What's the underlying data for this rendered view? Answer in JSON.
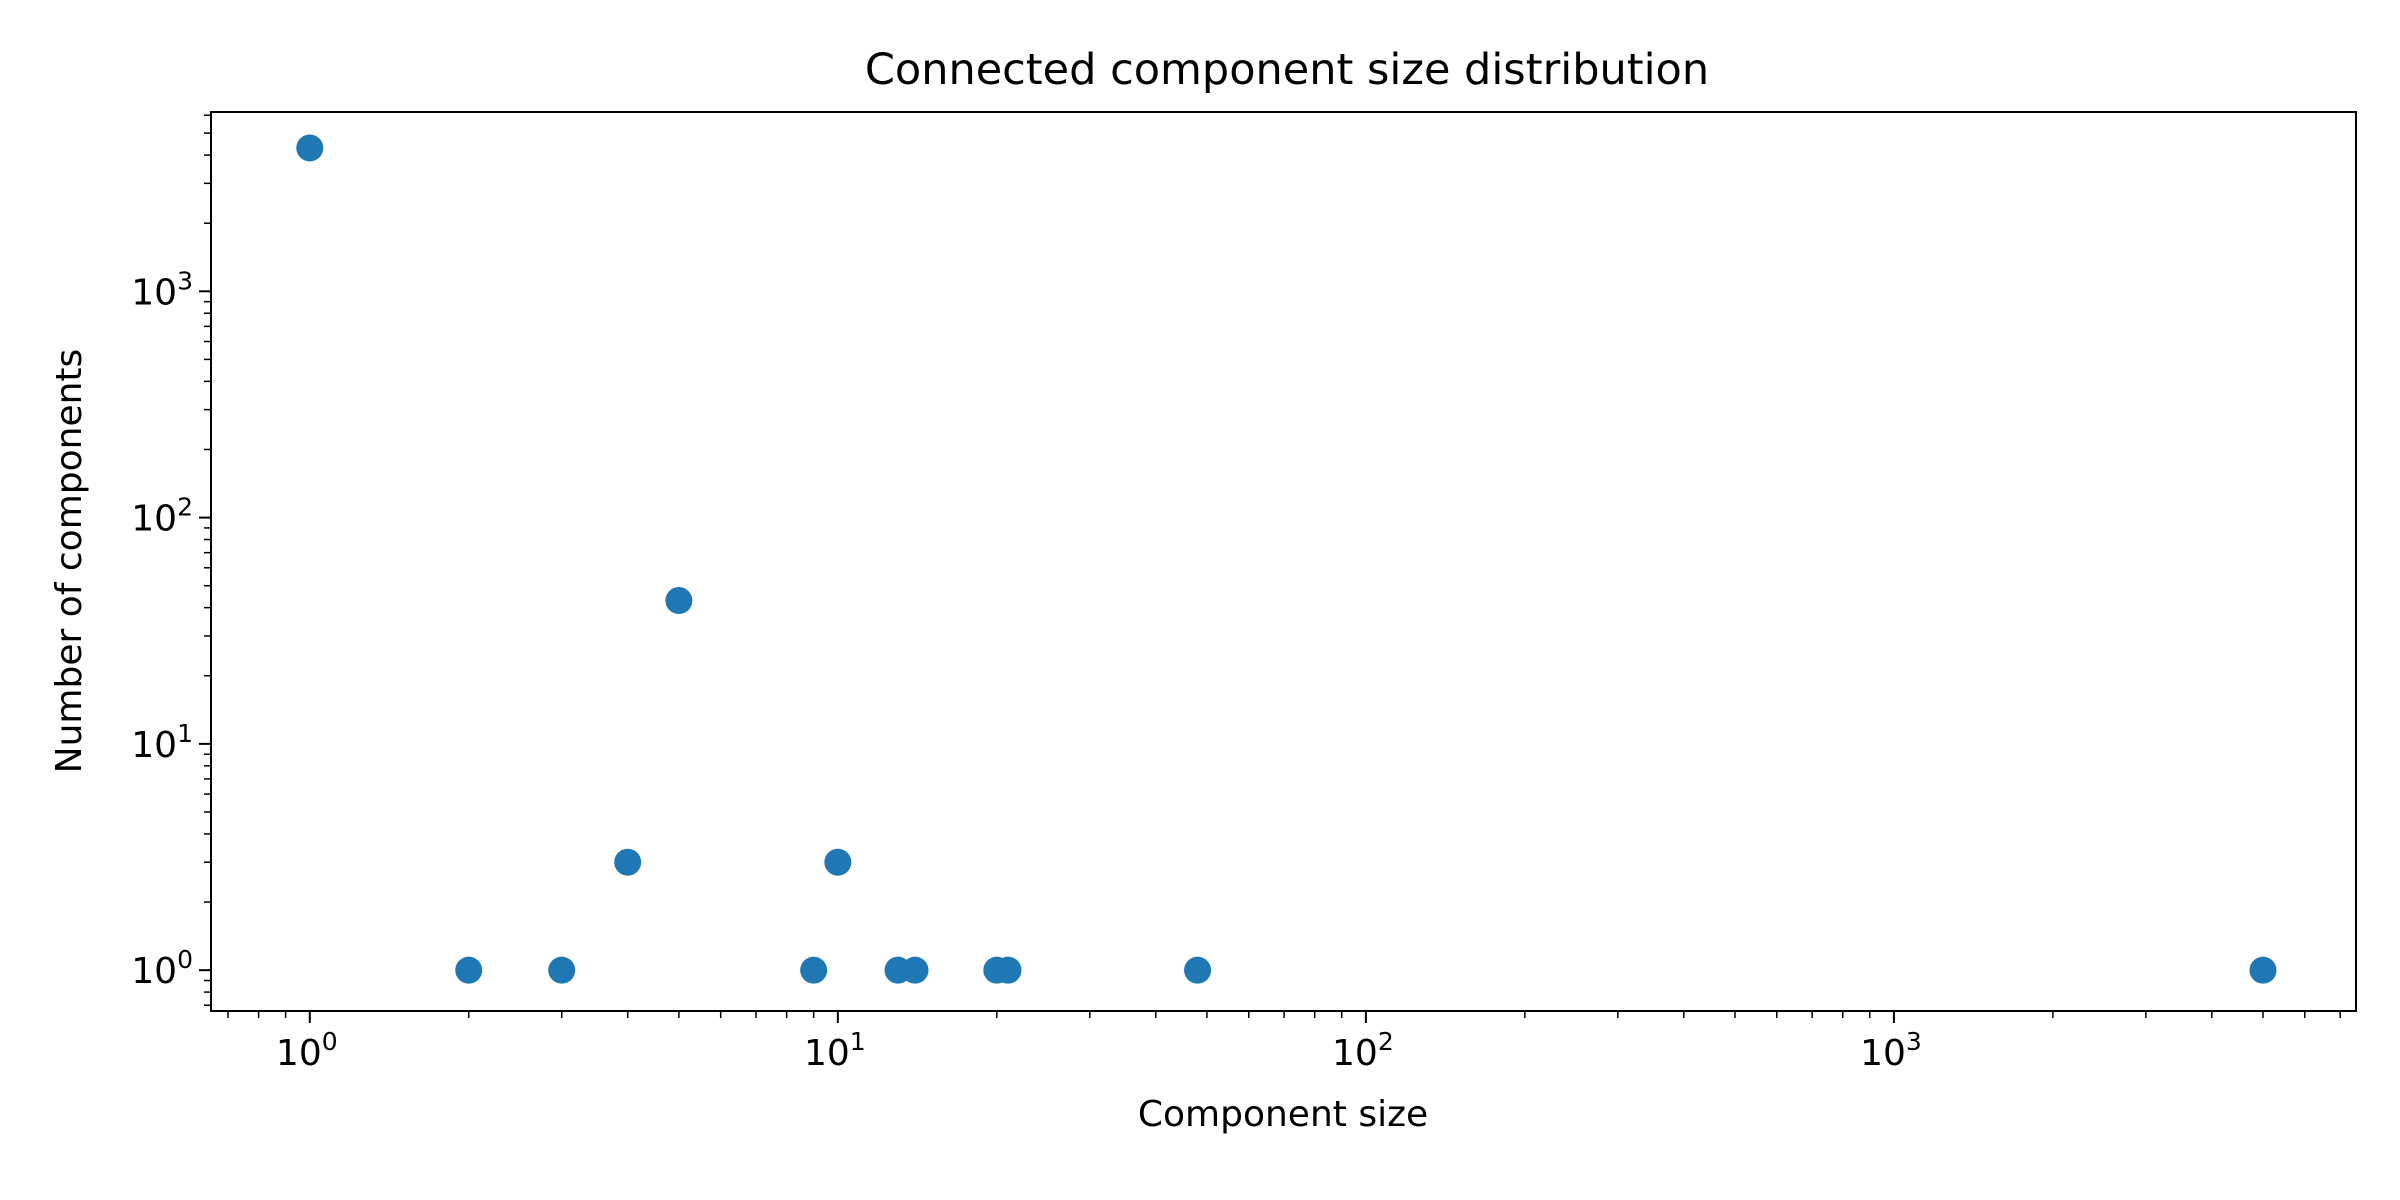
{
  "chart_data": {
    "type": "scatter",
    "title": "Connected component size distribution",
    "xlabel": "Component size",
    "ylabel": "Number of components",
    "x_scale": "log",
    "y_scale": "log",
    "xlim": [
      0.65,
      7500
    ],
    "ylim": [
      0.66,
      6200
    ],
    "grid": false,
    "legend": "none",
    "marker_color": "#1f77b4",
    "x_ticks": [
      {
        "base": "10",
        "exp": "0",
        "value": 1
      },
      {
        "base": "10",
        "exp": "1",
        "value": 10
      },
      {
        "base": "10",
        "exp": "2",
        "value": 100
      },
      {
        "base": "10",
        "exp": "3",
        "value": 1000
      }
    ],
    "y_ticks": [
      {
        "base": "10",
        "exp": "0",
        "value": 1
      },
      {
        "base": "10",
        "exp": "1",
        "value": 10
      },
      {
        "base": "10",
        "exp": "2",
        "value": 100
      },
      {
        "base": "10",
        "exp": "3",
        "value": 1000
      }
    ],
    "points": [
      {
        "x": 1,
        "y": 4300
      },
      {
        "x": 2,
        "y": 1
      },
      {
        "x": 3,
        "y": 1
      },
      {
        "x": 4,
        "y": 3
      },
      {
        "x": 5,
        "y": 43
      },
      {
        "x": 9,
        "y": 1
      },
      {
        "x": 10,
        "y": 3
      },
      {
        "x": 13,
        "y": 1
      },
      {
        "x": 14,
        "y": 1
      },
      {
        "x": 20,
        "y": 1
      },
      {
        "x": 21,
        "y": 1
      },
      {
        "x": 48,
        "y": 1
      },
      {
        "x": 5000,
        "y": 1
      }
    ]
  }
}
